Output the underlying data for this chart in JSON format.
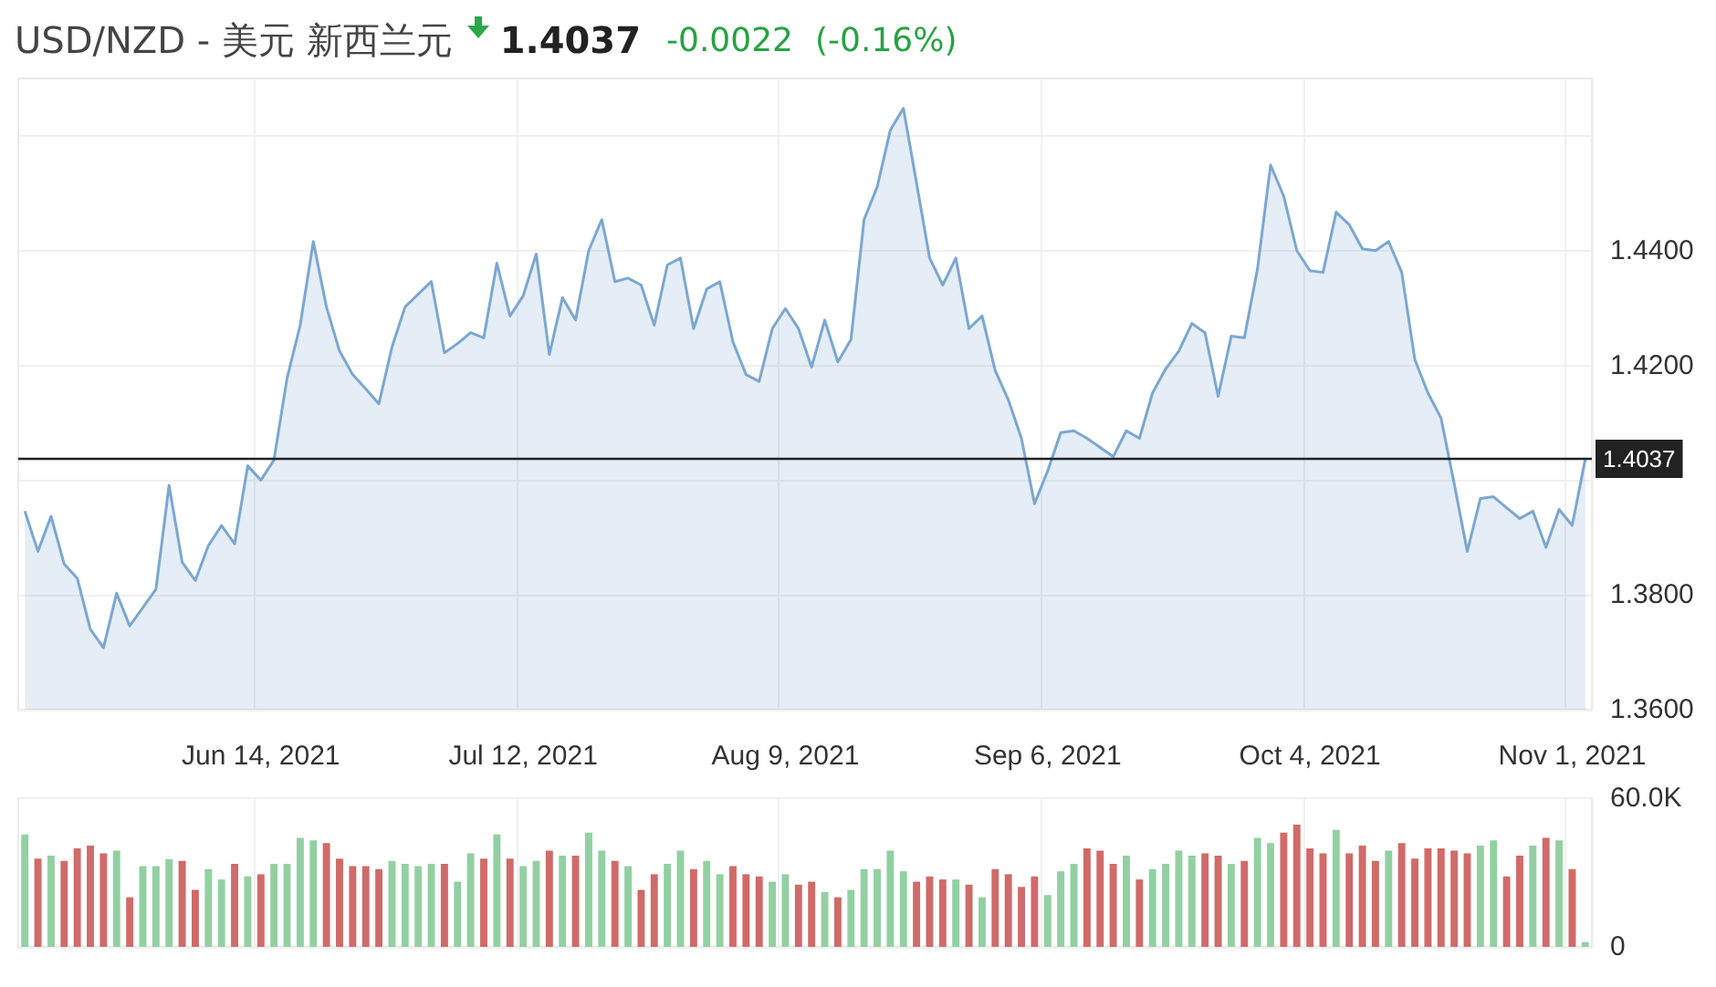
{
  "chart_data": [
    {
      "type": "area",
      "title": "USD/NZD - 美元 新西兰元",
      "annotations": [
        "1.4037",
        "-0.0022",
        "(-0.16%)"
      ],
      "categories": [
        null,
        null,
        null,
        null,
        null,
        null,
        null,
        null,
        null,
        null,
        null,
        null,
        null,
        null,
        null,
        null,
        null,
        null,
        "Jun 14, 2021",
        null,
        null,
        null,
        null,
        null,
        null,
        null,
        null,
        null,
        null,
        null,
        null,
        null,
        null,
        null,
        null,
        null,
        null,
        null,
        "Jul 12, 2021",
        null,
        null,
        null,
        null,
        null,
        null,
        null,
        null,
        null,
        null,
        null,
        null,
        null,
        null,
        null,
        null,
        null,
        null,
        null,
        "Aug 9, 2021",
        null,
        null,
        null,
        null,
        null,
        null,
        null,
        null,
        null,
        null,
        null,
        null,
        null,
        null,
        null,
        null,
        null,
        null,
        null,
        "Sep 6, 2021",
        null,
        null,
        null,
        null,
        null,
        null,
        null,
        null,
        null,
        null,
        null,
        null,
        null,
        null,
        null,
        null,
        null,
        null,
        null,
        "Oct 4, 2021",
        null,
        null,
        null,
        null,
        null,
        null,
        null,
        null,
        null,
        null,
        null,
        null,
        null,
        null,
        null,
        null,
        null,
        null,
        null,
        "Nov 1, 2021",
        null
      ],
      "values": [
        1.3946,
        1.3876,
        1.3937,
        1.3854,
        1.3829,
        1.374,
        1.3708,
        1.3803,
        1.3746,
        1.3778,
        1.381,
        1.3991,
        1.3857,
        1.3825,
        1.3886,
        1.3921,
        1.3889,
        1.4025,
        1.4,
        1.4035,
        1.4178,
        1.427,
        1.4416,
        1.4302,
        1.4225,
        1.4184,
        1.4159,
        1.4133,
        1.4232,
        1.4302,
        1.4324,
        1.4346,
        1.4222,
        1.4238,
        1.4257,
        1.4248,
        1.4378,
        1.4286,
        1.4321,
        1.4394,
        1.4219,
        1.4318,
        1.4279,
        1.44,
        1.4454,
        1.4346,
        1.4352,
        1.434,
        1.427,
        1.4375,
        1.4387,
        1.4264,
        1.4333,
        1.4346,
        1.4241,
        1.4184,
        1.4172,
        1.4264,
        1.4299,
        1.4264,
        1.4197,
        1.4279,
        1.4206,
        1.4245,
        1.4454,
        1.4511,
        1.461,
        1.4648,
        1.4518,
        1.4387,
        1.434,
        1.4387,
        1.4264,
        1.4286,
        1.4191,
        1.414,
        1.4073,
        1.3959,
        1.4016,
        1.4083,
        1.4086,
        1.4073,
        1.4057,
        1.4041,
        1.4086,
        1.4073,
        1.4152,
        1.4194,
        1.4225,
        1.4273,
        1.4257,
        1.4146,
        1.4251,
        1.4248,
        1.4368,
        1.4549,
        1.4495,
        1.44,
        1.4365,
        1.4362,
        1.4467,
        1.4445,
        1.4403,
        1.44,
        1.4416,
        1.4362,
        1.421,
        1.4152,
        1.4108,
        1.3994,
        1.3876,
        1.3968,
        1.3971,
        1.3952,
        1.3933,
        1.3946,
        1.3883,
        1.3949,
        1.3921,
        1.4037
      ],
      "color": "#7ba7d1",
      "ylim": [
        1.36,
        1.47
      ],
      "yticks": [
        {
          "value": 1.36,
          "label": "1.3600"
        },
        {
          "value": 1.38,
          "label": "1.3800"
        },
        {
          "value": 1.4,
          "label": null
        },
        {
          "value": 1.42,
          "label": "1.4200"
        },
        {
          "value": 1.44,
          "label": "1.4400"
        },
        {
          "value": 1.46,
          "label": null
        }
      ],
      "grid": true,
      "ref_lines": [
        {
          "axis": "y",
          "value": 1.4037,
          "label": "1.4037",
          "color": "#222222"
        }
      ]
    },
    {
      "type": "bar",
      "categories": [
        null,
        null,
        null,
        null,
        null,
        null,
        null,
        null,
        null,
        null,
        null,
        null,
        null,
        null,
        null,
        null,
        null,
        null,
        null,
        null,
        null,
        null,
        null,
        null,
        null,
        null,
        null,
        null,
        null,
        null,
        null,
        null,
        null,
        null,
        null,
        null,
        null,
        null,
        null,
        null,
        null,
        null,
        null,
        null,
        null,
        null,
        null,
        null,
        null,
        null,
        null,
        null,
        null,
        null,
        null,
        null,
        null,
        null,
        null,
        null,
        null,
        null,
        null,
        null,
        null,
        null,
        null,
        null,
        null,
        null,
        null,
        null,
        null,
        null,
        null,
        null,
        null,
        null,
        null,
        null,
        null,
        null,
        null,
        null,
        null,
        null,
        null,
        null,
        null,
        null,
        null,
        null,
        null,
        null,
        null,
        null,
        null,
        null,
        null,
        null,
        null,
        null,
        null,
        null,
        null,
        null,
        null,
        null,
        null,
        null,
        null,
        null,
        null,
        null,
        null,
        null,
        null,
        null,
        null,
        null
      ],
      "values": [
        45400,
        35600,
        36800,
        34700,
        39800,
        40900,
        37700,
        38800,
        20000,
        32600,
        32600,
        35400,
        34700,
        23000,
        31400,
        27200,
        33500,
        28400,
        29300,
        33500,
        33500,
        44000,
        43000,
        41900,
        35600,
        32600,
        32600,
        31400,
        34700,
        33500,
        32600,
        33500,
        33500,
        26300,
        37700,
        35600,
        45400,
        35600,
        32600,
        34700,
        38800,
        36800,
        36800,
        46100,
        38800,
        34700,
        32600,
        23000,
        29300,
        33500,
        38800,
        31400,
        34700,
        29300,
        32600,
        29300,
        28400,
        26300,
        29300,
        25100,
        26300,
        22100,
        20000,
        23000,
        31400,
        31400,
        38800,
        30500,
        26300,
        28400,
        27200,
        27200,
        25100,
        20000,
        31400,
        29300,
        24200,
        28400,
        20900,
        30500,
        33500,
        39800,
        38800,
        33500,
        36800,
        27200,
        31400,
        33500,
        38800,
        36800,
        37700,
        36800,
        33500,
        34700,
        44000,
        41900,
        46100,
        49300,
        39800,
        37700,
        47200,
        37700,
        40900,
        34700,
        38800,
        41900,
        35600,
        39800,
        39800,
        38800,
        37700,
        40900,
        43000,
        28400,
        36800,
        40900,
        44000,
        43000,
        31400,
        1900
      ],
      "colors": [
        "#92d0a2",
        "#cf6b69",
        "#92d0a2",
        "#cf6b69",
        "#cf6b69",
        "#cf6b69",
        "#cf6b69",
        "#92d0a2",
        "#cf6b69",
        "#92d0a2",
        "#92d0a2",
        "#92d0a2",
        "#cf6b69",
        "#cf6b69",
        "#92d0a2",
        "#92d0a2",
        "#cf6b69",
        "#92d0a2",
        "#cf6b69",
        "#92d0a2",
        "#92d0a2",
        "#92d0a2",
        "#92d0a2",
        "#cf6b69",
        "#cf6b69",
        "#cf6b69",
        "#cf6b69",
        "#cf6b69",
        "#92d0a2",
        "#92d0a2",
        "#92d0a2",
        "#92d0a2",
        "#cf6b69",
        "#92d0a2",
        "#92d0a2",
        "#cf6b69",
        "#92d0a2",
        "#cf6b69",
        "#92d0a2",
        "#92d0a2",
        "#cf6b69",
        "#92d0a2",
        "#cf6b69",
        "#92d0a2",
        "#92d0a2",
        "#cf6b69",
        "#92d0a2",
        "#cf6b69",
        "#cf6b69",
        "#92d0a2",
        "#92d0a2",
        "#cf6b69",
        "#92d0a2",
        "#92d0a2",
        "#cf6b69",
        "#cf6b69",
        "#cf6b69",
        "#92d0a2",
        "#92d0a2",
        "#cf6b69",
        "#cf6b69",
        "#92d0a2",
        "#cf6b69",
        "#92d0a2",
        "#92d0a2",
        "#92d0a2",
        "#92d0a2",
        "#92d0a2",
        "#cf6b69",
        "#cf6b69",
        "#cf6b69",
        "#92d0a2",
        "#cf6b69",
        "#92d0a2",
        "#cf6b69",
        "#cf6b69",
        "#cf6b69",
        "#cf6b69",
        "#92d0a2",
        "#92d0a2",
        "#92d0a2",
        "#cf6b69",
        "#cf6b69",
        "#cf6b69",
        "#92d0a2",
        "#cf6b69",
        "#92d0a2",
        "#92d0a2",
        "#92d0a2",
        "#92d0a2",
        "#cf6b69",
        "#cf6b69",
        "#92d0a2",
        "#cf6b69",
        "#92d0a2",
        "#92d0a2",
        "#cf6b69",
        "#cf6b69",
        "#cf6b69",
        "#cf6b69",
        "#92d0a2",
        "#cf6b69",
        "#cf6b69",
        "#cf6b69",
        "#92d0a2",
        "#cf6b69",
        "#cf6b69",
        "#cf6b69",
        "#cf6b69",
        "#cf6b69",
        "#cf6b69",
        "#92d0a2",
        "#92d0a2",
        "#cf6b69",
        "#cf6b69",
        "#92d0a2",
        "#cf6b69",
        "#92d0a2",
        "#cf6b69",
        "#92d0a2"
      ],
      "ylim": [
        0,
        60000
      ],
      "yticks": [
        {
          "value": 0,
          "label": "0"
        },
        {
          "value": 60000,
          "label": "60.0K"
        }
      ],
      "grid": true,
      "tick_labels": "y"
    }
  ]
}
